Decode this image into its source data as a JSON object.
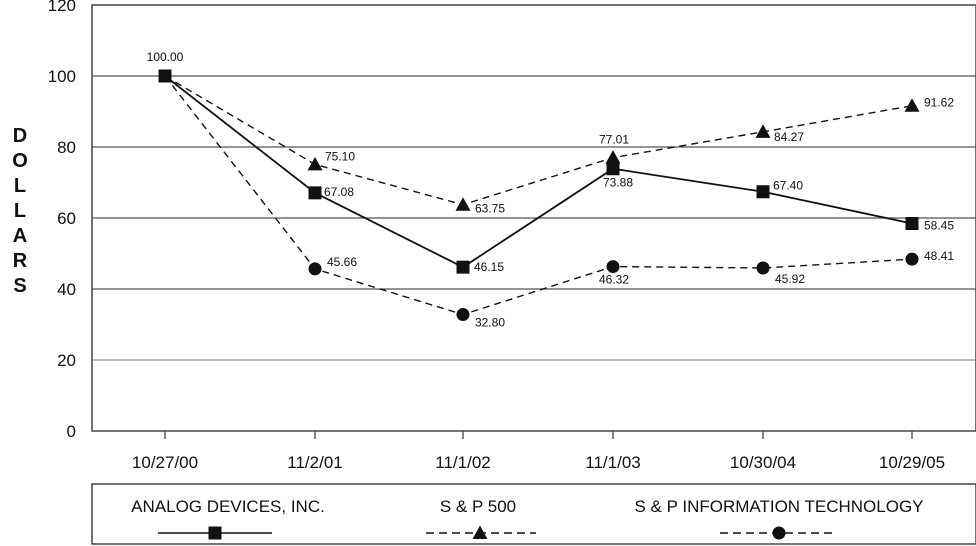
{
  "chart_data": {
    "type": "line",
    "title": "",
    "xlabel": "",
    "ylabel": "DOLLARS",
    "categories": [
      "10/27/00",
      "11/2/01",
      "11/1/02",
      "11/1/03",
      "10/30/04",
      "10/29/05"
    ],
    "ylim": [
      0,
      120
    ],
    "y_ticks": [
      "0",
      "20",
      "40",
      "60",
      "80",
      "100",
      "120"
    ],
    "grid": true,
    "legend_position": "bottom",
    "series": [
      {
        "name": "ANALOG DEVICES, INC.",
        "values": [
          100.0,
          67.08,
          46.15,
          73.88,
          67.4,
          58.45
        ],
        "labels": [
          "100.00",
          "67.08",
          "46.15",
          "73.88",
          "67.40",
          "58.45"
        ],
        "marker": "square",
        "line_style": "solid",
        "color": "#111111"
      },
      {
        "name": "S & P 500",
        "values": [
          100.0,
          75.1,
          63.75,
          77.01,
          84.27,
          91.62
        ],
        "labels": [
          "",
          "75.10",
          "63.75",
          "77.01",
          "84.27",
          "91.62"
        ],
        "marker": "triangle",
        "line_style": "dashed",
        "color": "#111111"
      },
      {
        "name": "S & P INFORMATION TECHNOLOGY",
        "values": [
          100.0,
          45.66,
          32.8,
          46.32,
          45.92,
          48.41
        ],
        "labels": [
          "",
          "45.66",
          "32.80",
          "46.32",
          "45.92",
          "48.41"
        ],
        "marker": "circle",
        "line_style": "dashed",
        "color": "#111111"
      }
    ]
  }
}
